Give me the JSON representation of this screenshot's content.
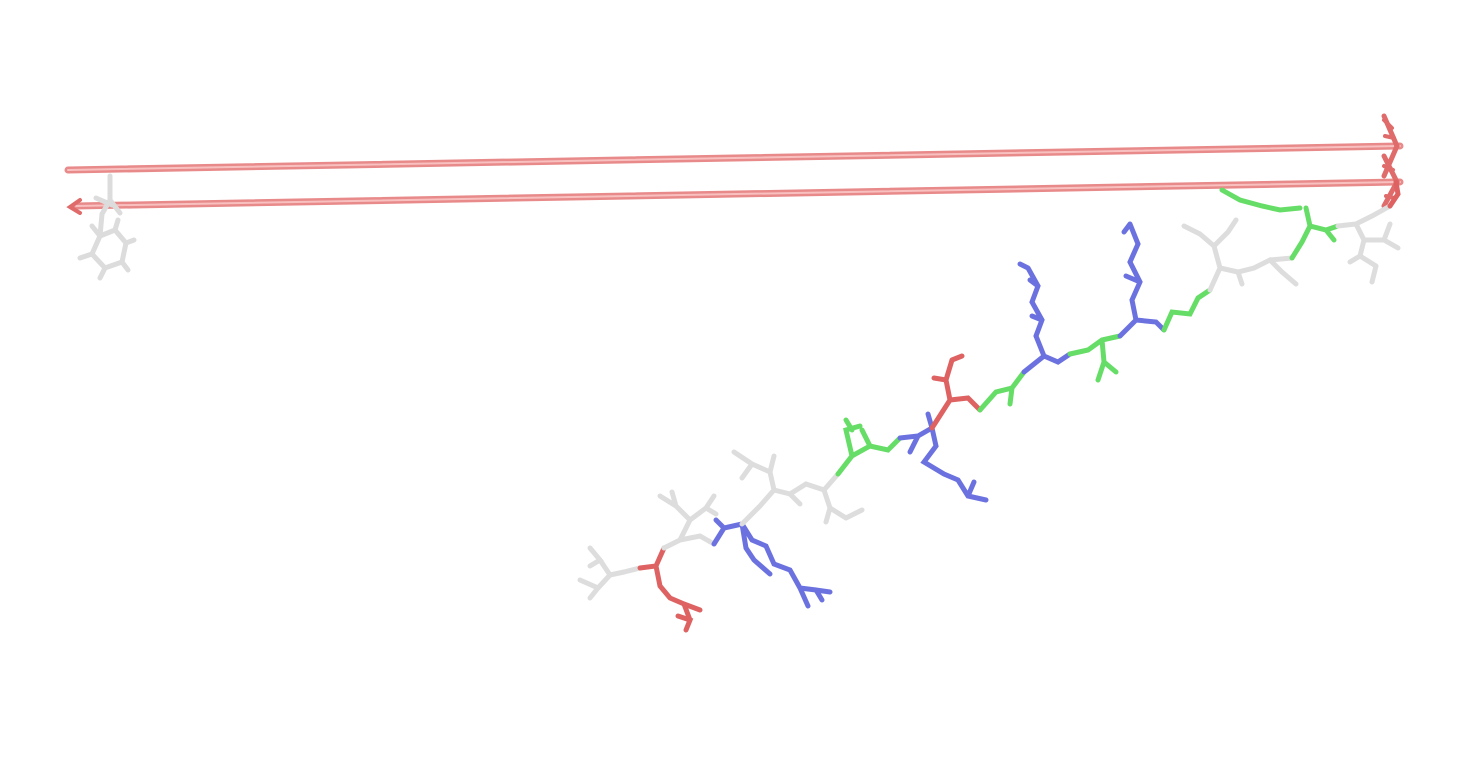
{
  "scene": {
    "background": "#ffffff",
    "colors": {
      "backbone": "#f08080",
      "hydrophobic": "#e6e6e6",
      "basic": "#6b72e0",
      "acidic": "#e06060",
      "polar": "#66dd66"
    },
    "residues": [
      {
        "name": "phenyl-ring-residue",
        "type": "hydrophobic"
      },
      {
        "name": "end-residue-left",
        "type": "hydrophobic"
      },
      {
        "name": "acidic-residue-bottom",
        "type": "acidic"
      },
      {
        "name": "basic-residue-bottom",
        "type": "basic"
      },
      {
        "name": "hydrophobic-residue-mid",
        "type": "hydrophobic"
      },
      {
        "name": "polar-residue-mid",
        "type": "polar"
      },
      {
        "name": "basic-residue-mid",
        "type": "basic"
      },
      {
        "name": "acidic-residue-mid",
        "type": "acidic"
      },
      {
        "name": "polar-residue-upper",
        "type": "polar"
      },
      {
        "name": "basic-residue-upper-left",
        "type": "basic"
      },
      {
        "name": "polar-residue-upper-mid",
        "type": "polar"
      },
      {
        "name": "basic-residue-upper-right",
        "type": "basic"
      },
      {
        "name": "polar-residue-top",
        "type": "polar"
      },
      {
        "name": "hydrophobic-residue-top",
        "type": "hydrophobic"
      },
      {
        "name": "polar-residue-far-right",
        "type": "polar"
      },
      {
        "name": "hydrophobic-residue-far-right",
        "type": "hydrophobic"
      }
    ]
  }
}
